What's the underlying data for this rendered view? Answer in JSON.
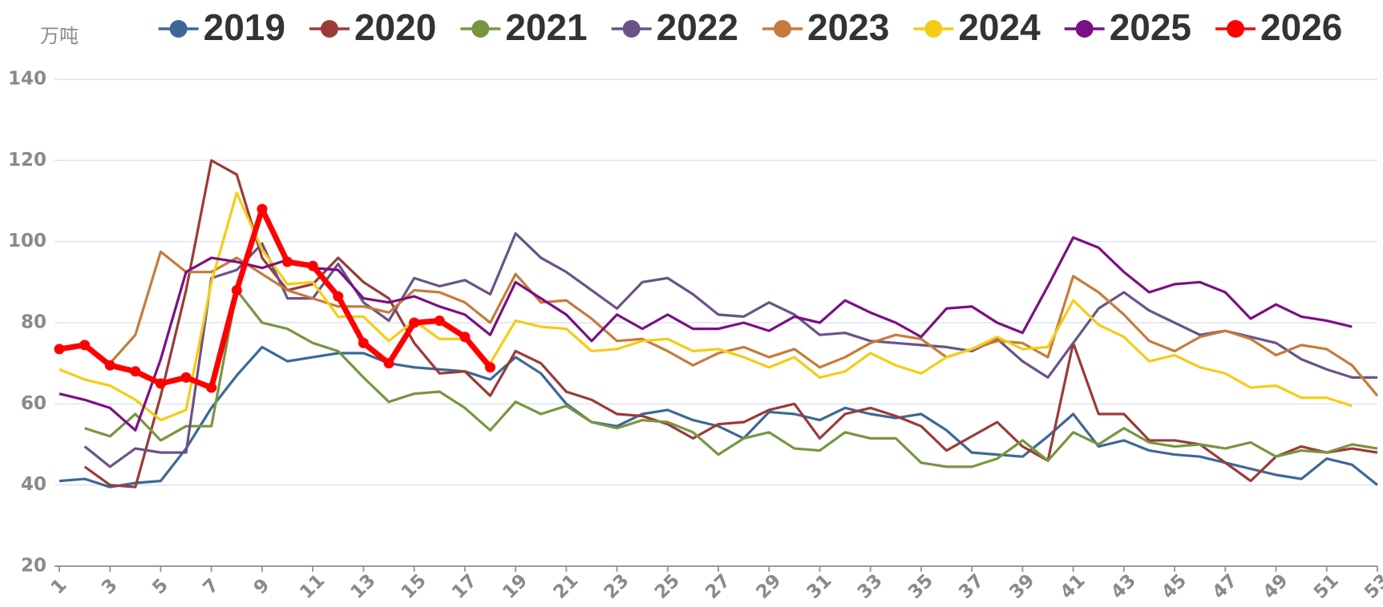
{
  "chart_data": {
    "type": "line",
    "y_unit": "万吨",
    "x": [
      1,
      2,
      3,
      4,
      5,
      6,
      7,
      8,
      9,
      10,
      11,
      12,
      13,
      14,
      15,
      16,
      17,
      18,
      19,
      20,
      21,
      22,
      23,
      24,
      25,
      26,
      27,
      28,
      29,
      30,
      31,
      32,
      33,
      34,
      35,
      36,
      37,
      38,
      39,
      40,
      41,
      42,
      43,
      44,
      45,
      46,
      47,
      48,
      49,
      50,
      51,
      52,
      53
    ],
    "xlim": [
      1,
      53
    ],
    "xticks": [
      1,
      3,
      5,
      7,
      9,
      11,
      13,
      15,
      17,
      19,
      21,
      23,
      25,
      27,
      29,
      31,
      33,
      35,
      37,
      39,
      41,
      43,
      45,
      47,
      49,
      51,
      53
    ],
    "ylim": [
      20,
      140
    ],
    "yticks": [
      20,
      40,
      60,
      80,
      100,
      120,
      140
    ],
    "grid": true,
    "legend": "top",
    "series": [
      {
        "name": "2019",
        "color": "#3d6896",
        "values": [
          41,
          41.5,
          39.5,
          40.5,
          41,
          49,
          59,
          67,
          74,
          70.5,
          71.5,
          72.5,
          72.5,
          70,
          69,
          68.5,
          68,
          66,
          71.5,
          67.5,
          60,
          55.5,
          54.5,
          57.5,
          58.5,
          56,
          54.5,
          51.5,
          58,
          57.5,
          56,
          59,
          57.5,
          56.5,
          57.5,
          53.5,
          48,
          47.5,
          47,
          52,
          57.5,
          49.5,
          51,
          48.5,
          47.5,
          47,
          45.5,
          44,
          42.5,
          41.5,
          46.5,
          45,
          40
        ]
      },
      {
        "name": "2020",
        "color": "#9a3b38",
        "values": [
          null,
          44.5,
          40,
          39.5,
          62,
          88,
          120,
          116.5,
          96,
          88,
          89.5,
          96,
          90,
          86,
          75,
          67.5,
          68,
          62,
          73,
          70,
          63,
          61,
          57.5,
          57,
          55,
          51.5,
          55,
          55.5,
          58.5,
          60,
          51.5,
          57.5,
          59,
          57,
          54.5,
          48.5,
          52,
          55.5,
          49.5,
          46,
          75,
          57.5,
          57.5,
          51,
          51,
          50,
          45.5,
          41,
          47,
          49.5,
          48,
          49,
          48
        ]
      },
      {
        "name": "2021",
        "color": "#77963f",
        "values": [
          null,
          54,
          52,
          57.5,
          51,
          54.5,
          54.5,
          88,
          80,
          78.5,
          75,
          73,
          66.5,
          60.5,
          62.5,
          63,
          59,
          53.5,
          60.5,
          57.5,
          59.5,
          55.5,
          54,
          56,
          55.5,
          53,
          47.5,
          51.5,
          53,
          49,
          48.5,
          53,
          51.5,
          51.5,
          45.5,
          44.5,
          44.5,
          46.5,
          51,
          46,
          53,
          50,
          54,
          50.5,
          49.5,
          50,
          49,
          50.5,
          47,
          48.5,
          48,
          50,
          49
        ]
      },
      {
        "name": "2022",
        "color": "#6a5388",
        "values": [
          null,
          49.5,
          44.5,
          49,
          48,
          48,
          91,
          93,
          99.5,
          86,
          86,
          94.5,
          85,
          80.5,
          91,
          89,
          90.5,
          87,
          102,
          96,
          92.5,
          88,
          83.5,
          90,
          91,
          87,
          82,
          81.5,
          85,
          82,
          77,
          77.5,
          75.5,
          75,
          74.5,
          74,
          73,
          76,
          70.5,
          66.5,
          75,
          83.5,
          87.5,
          83,
          80,
          77,
          78,
          76.5,
          75,
          71,
          68.5,
          66.5,
          66.5
        ]
      },
      {
        "name": "2023",
        "color": "#c67b3c",
        "values": [
          null,
          null,
          70,
          77,
          97.5,
          92.5,
          92.5,
          96,
          92,
          88,
          86,
          84,
          84,
          82.5,
          88,
          87.5,
          85,
          80,
          92,
          85,
          85.5,
          81,
          75.5,
          76,
          73,
          69.5,
          72.5,
          74,
          71.5,
          73.5,
          69,
          71.5,
          75,
          77,
          76,
          71.5,
          73.5,
          75.5,
          75,
          71.5,
          91.5,
          87.5,
          82,
          75.5,
          73,
          76.5,
          78,
          76,
          72,
          74.5,
          73.5,
          69.5,
          62
        ]
      },
      {
        "name": "2024",
        "color": "#f5cc14",
        "values": [
          68.5,
          66,
          64.5,
          61,
          56,
          58.5,
          90,
          112,
          98,
          89.5,
          90,
          81.5,
          81.5,
          75.5,
          80.5,
          76,
          76,
          70,
          80.5,
          79,
          78.5,
          73,
          73.5,
          75.5,
          76,
          73,
          73.5,
          71.5,
          69,
          71.5,
          66.5,
          68,
          72.5,
          69.5,
          67.5,
          71.5,
          73.5,
          76.5,
          73.5,
          74,
          85.5,
          79.5,
          76.5,
          70.5,
          72,
          69,
          67.5,
          64,
          64.5,
          61.5,
          61.5,
          59.5,
          null
        ]
      },
      {
        "name": "2025",
        "color": "#7b0f85",
        "values": [
          62.5,
          61,
          59,
          53.5,
          71,
          92.5,
          96,
          95,
          93.5,
          95.5,
          93.5,
          93,
          86,
          85,
          86.5,
          84,
          82,
          77,
          90,
          86,
          82,
          75.5,
          82,
          78.5,
          82,
          78.5,
          78.5,
          80,
          78,
          81.5,
          80,
          85.5,
          82.5,
          80,
          76.5,
          83.5,
          84,
          80,
          77.5,
          89,
          101,
          98.5,
          92.5,
          87.5,
          89.5,
          90,
          87.5,
          81,
          84.5,
          81.5,
          80.5,
          79,
          null
        ]
      },
      {
        "name": "2026",
        "color": "#ff0000",
        "markers": true,
        "values": [
          73.5,
          74.5,
          69.5,
          68,
          65,
          66.5,
          64,
          88,
          108,
          95,
          94,
          86.5,
          75,
          70,
          80,
          80.5,
          76.5,
          69,
          null,
          null,
          null,
          null,
          null,
          null,
          null,
          null,
          null,
          null,
          null,
          null,
          null,
          null,
          null,
          null,
          null,
          null,
          null,
          null,
          null,
          null,
          null,
          null,
          null,
          null,
          null,
          null,
          null,
          null,
          null,
          null,
          null,
          null,
          null
        ]
      }
    ]
  }
}
